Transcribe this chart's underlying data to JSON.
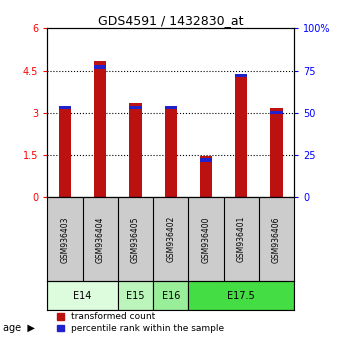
{
  "title": "GDS4591 / 1432830_at",
  "samples": [
    "GSM936403",
    "GSM936404",
    "GSM936405",
    "GSM936402",
    "GSM936400",
    "GSM936401",
    "GSM936406"
  ],
  "transformed_counts": [
    3.25,
    4.85,
    3.35,
    3.22,
    1.47,
    4.37,
    3.18
  ],
  "percentile_ranks_pct": [
    53,
    77,
    53,
    53,
    22,
    72,
    50
  ],
  "age_groups": [
    {
      "label": "E14",
      "samples": [
        "GSM936403",
        "GSM936404"
      ],
      "color": "#ddfcdd"
    },
    {
      "label": "E15",
      "samples": [
        "GSM936405"
      ],
      "color": "#bbf5bb"
    },
    {
      "label": "E16",
      "samples": [
        "GSM936402"
      ],
      "color": "#99ee99"
    },
    {
      "label": "E17.5",
      "samples": [
        "GSM936400",
        "GSM936401",
        "GSM936406"
      ],
      "color": "#44dd44"
    }
  ],
  "bar_color_red": "#bb1111",
  "bar_color_blue": "#2222cc",
  "bar_width": 0.35,
  "ylim_left": [
    0,
    6
  ],
  "ylim_right": [
    0,
    100
  ],
  "yticks_left": [
    0,
    1.5,
    3,
    4.5,
    6
  ],
  "ytick_labels_left": [
    "0",
    "1.5",
    "3",
    "4.5",
    "6"
  ],
  "yticks_right": [
    0,
    25,
    50,
    75,
    100
  ],
  "ytick_labels_right": [
    "0",
    "25",
    "50",
    "75",
    "100%"
  ],
  "bg_color": "#ffffff",
  "sample_area_color": "#cccccc",
  "age_label": "age",
  "legend_red_label": "transformed count",
  "legend_blue_label": "percentile rank within the sample",
  "blue_bar_thickness": 0.12
}
